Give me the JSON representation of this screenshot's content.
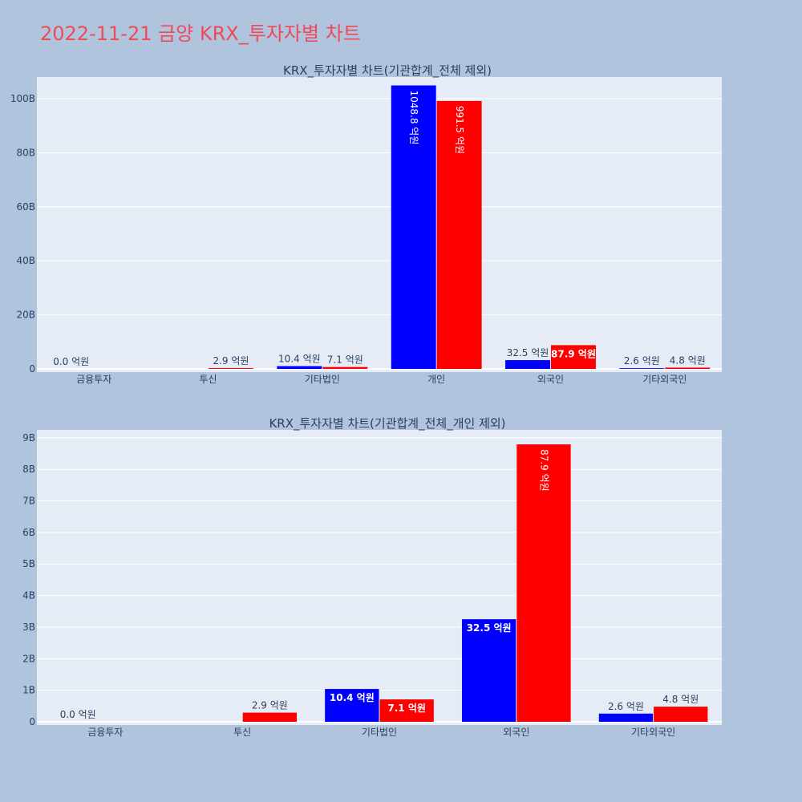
{
  "title": "2022-11-21 금양 KRX_투자자별 차트",
  "colors": {
    "background": "#b0c4de",
    "plot_bg": "#e5ecf6",
    "title": "#ef4a5a",
    "text": "#2a3f5f",
    "buy": "#0000ff",
    "sell": "#ff0000"
  },
  "chart_data": [
    {
      "type": "bar",
      "title": "KRX_투자자별 차트(기관합계_전체 제외)",
      "categories": [
        "금융투자",
        "투신",
        "기타법인",
        "개인",
        "외국인",
        "기타외국인"
      ],
      "series": [
        {
          "color": "#0000ff",
          "values": [
            0.0,
            0,
            1.04,
            104.88,
            3.25,
            0.26
          ],
          "labels": [
            "0.0 억원",
            "",
            "10.4 억원",
            "1048.8 억원",
            "32.5 억원",
            "2.6 억원"
          ]
        },
        {
          "color": "#ff0000",
          "values": [
            0,
            0.29,
            0.71,
            99.15,
            8.79,
            0.48
          ],
          "labels": [
            "",
            "2.9 억원",
            "7.1 억원",
            "991.5 억원",
            "87.9 억원",
            "4.8 억원"
          ]
        }
      ],
      "ylim": [
        0,
        108
      ],
      "yticks": [
        0,
        20,
        40,
        60,
        80,
        100
      ],
      "ytick_labels": [
        "0",
        "20B",
        "40B",
        "60B",
        "80B",
        "100B"
      ],
      "grid": true
    },
    {
      "type": "bar",
      "title": "KRX_투자자별 차트(기관합계_전체_개인 제외)",
      "categories": [
        "금융투자",
        "투신",
        "기타법인",
        "외국인",
        "기타외국인"
      ],
      "series": [
        {
          "color": "#0000ff",
          "values": [
            0.0,
            0,
            1.04,
            3.25,
            0.26
          ],
          "labels": [
            "0.0 억원",
            "",
            "10.4 억원",
            "32.5 억원",
            "2.6 억원"
          ]
        },
        {
          "color": "#ff0000",
          "values": [
            0,
            0.29,
            0.71,
            8.79,
            0.48
          ],
          "labels": [
            "",
            "2.9 억원",
            "7.1 억원",
            "87.9 억원",
            "4.8 억원"
          ]
        }
      ],
      "ylim": [
        0,
        9.25
      ],
      "yticks": [
        0,
        1,
        2,
        3,
        4,
        5,
        6,
        7,
        8,
        9
      ],
      "ytick_labels": [
        "0",
        "1B",
        "2B",
        "3B",
        "4B",
        "5B",
        "6B",
        "7B",
        "8B",
        "9B"
      ],
      "grid": true
    }
  ]
}
